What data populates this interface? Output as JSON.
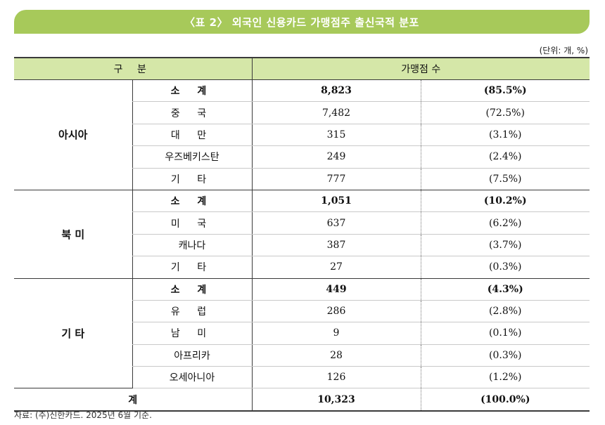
{
  "title": "〈표 2〉 외국인 신용카드 가맹점주 출신국적 분포",
  "unit": "(단위: 개, %)",
  "headers": {
    "category": "구 분",
    "count": "가맹점 수"
  },
  "groups": [
    {
      "region": "아시아",
      "rows": [
        {
          "label": "소 계",
          "count": "8,823",
          "share": "(85.5%)",
          "subtotal": true
        },
        {
          "label": "중 국",
          "count": "7,482",
          "share": "(72.5%)",
          "subtotal": false
        },
        {
          "label": "대 만",
          "count": "315",
          "share": "(3.1%)",
          "subtotal": false
        },
        {
          "label": "우즈베키스탄",
          "count": "249",
          "share": "(2.4%)",
          "subtotal": false
        },
        {
          "label": "기 타",
          "count": "777",
          "share": "(7.5%)",
          "subtotal": false
        }
      ]
    },
    {
      "region": "북 미",
      "rows": [
        {
          "label": "소 계",
          "count": "1,051",
          "share": "(10.2%)",
          "subtotal": true
        },
        {
          "label": "미 국",
          "count": "637",
          "share": "(6.2%)",
          "subtotal": false
        },
        {
          "label": "캐나다",
          "count": "387",
          "share": "(3.7%)",
          "subtotal": false
        },
        {
          "label": "기 타",
          "count": "27",
          "share": "(0.3%)",
          "subtotal": false
        }
      ]
    },
    {
      "region": "기 타",
      "rows": [
        {
          "label": "소 계",
          "count": "449",
          "share": "(4.3%)",
          "subtotal": true
        },
        {
          "label": "유 럽",
          "count": "286",
          "share": "(2.8%)",
          "subtotal": false
        },
        {
          "label": "남 미",
          "count": "9",
          "share": "(0.1%)",
          "subtotal": false
        },
        {
          "label": "아프리카",
          "count": "28",
          "share": "(0.3%)",
          "subtotal": false
        },
        {
          "label": "오세아니아",
          "count": "126",
          "share": "(1.2%)",
          "subtotal": false
        }
      ]
    }
  ],
  "total": {
    "label": "계",
    "count": "10,323",
    "share": "(100.0%)"
  },
  "source": "자료: (주)신한카드. 2025년 6월 기준."
}
